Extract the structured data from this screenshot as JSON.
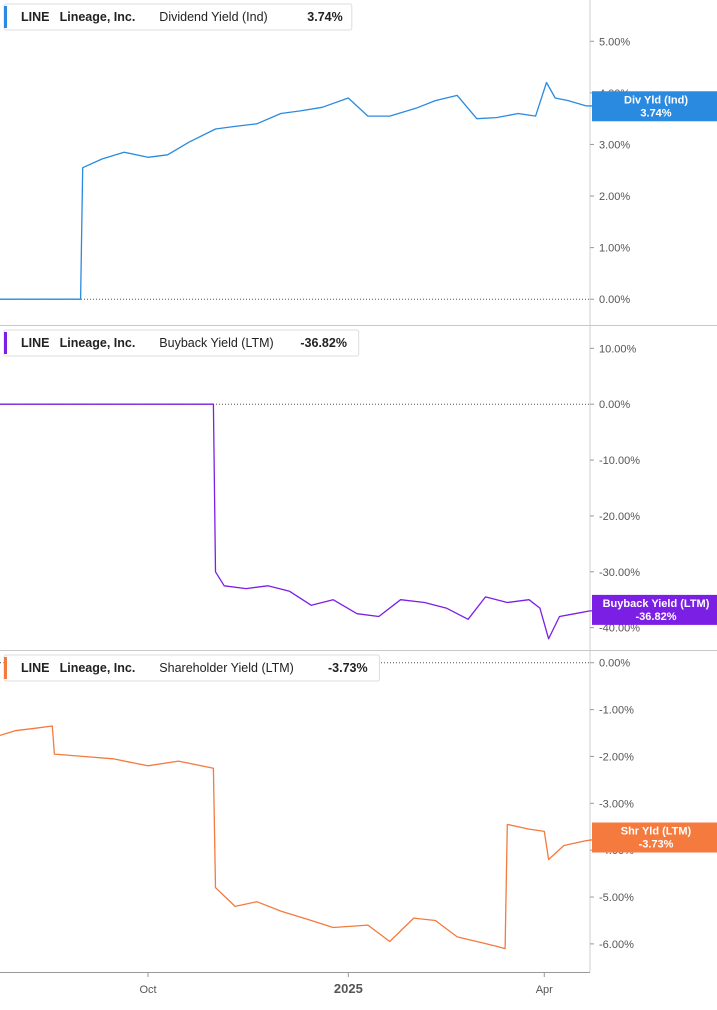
{
  "colors": {
    "dividend": "#2a8ae0",
    "buyback": "#7b1fe4",
    "shareholder": "#f47a3e",
    "grid": "#d8d8d8",
    "axis_text": "#555555",
    "label_text": "#222222"
  },
  "x_axis": {
    "ticks": [
      {
        "label": "Oct",
        "date": "2024-10-01",
        "bold": false
      },
      {
        "label": "2025",
        "date": "2025-01-01",
        "bold": true
      },
      {
        "label": "Apr",
        "date": "2025-04-01",
        "bold": false
      }
    ]
  },
  "chart_data": [
    {
      "type": "line",
      "legend": {
        "ticker": "LINE",
        "company": "Lineage, Inc.",
        "metric": "Dividend Yield (Ind)",
        "value": "3.74%"
      },
      "flag": {
        "line1": "Div Yld (Ind)",
        "line2": "3.74%",
        "value": 3.74
      },
      "color_key": "dividend",
      "ylim": [
        -0.5,
        5.8
      ],
      "y_ticks": [
        {
          "v": 0,
          "label": "0.00%"
        },
        {
          "v": 1,
          "label": "1.00%"
        },
        {
          "v": 2,
          "label": "2.00%"
        },
        {
          "v": 3,
          "label": "3.00%"
        },
        {
          "v": 4,
          "label": "4.00%"
        },
        {
          "v": 5,
          "label": "5.00%"
        }
      ],
      "reference_y": 0,
      "x": [
        "2024-07-25",
        "2024-08-31",
        "2024-09-01",
        "2024-09-10",
        "2024-09-20",
        "2024-10-01",
        "2024-10-10",
        "2024-10-20",
        "2024-11-01",
        "2024-11-10",
        "2024-11-20",
        "2024-12-01",
        "2024-12-10",
        "2024-12-20",
        "2025-01-01",
        "2025-01-10",
        "2025-01-20",
        "2025-02-01",
        "2025-02-10",
        "2025-02-20",
        "2025-03-01",
        "2025-03-10",
        "2025-03-20",
        "2025-03-28",
        "2025-04-02",
        "2025-04-06",
        "2025-04-12",
        "2025-04-20",
        "2025-04-30"
      ],
      "y": [
        0.0,
        0.0,
        2.55,
        2.72,
        2.85,
        2.75,
        2.8,
        3.05,
        3.3,
        3.35,
        3.4,
        3.6,
        3.65,
        3.72,
        3.9,
        3.55,
        3.55,
        3.7,
        3.85,
        3.95,
        3.5,
        3.52,
        3.6,
        3.55,
        4.2,
        3.9,
        3.85,
        3.75,
        3.74
      ]
    },
    {
      "type": "line",
      "legend": {
        "ticker": "LINE",
        "company": "Lineage, Inc.",
        "metric": "Buyback Yield (LTM)",
        "value": "-36.82%"
      },
      "flag": {
        "line1": "Buyback Yield (LTM)",
        "line2": "-36.82%",
        "value": -36.82
      },
      "color_key": "buyback",
      "ylim": [
        -44,
        14
      ],
      "y_ticks": [
        {
          "v": 10,
          "label": "10.00%"
        },
        {
          "v": 0,
          "label": "0.00%"
        },
        {
          "v": -10,
          "label": "-10.00%"
        },
        {
          "v": -20,
          "label": "-20.00%"
        },
        {
          "v": -30,
          "label": "-30.00%"
        },
        {
          "v": -40,
          "label": "-40.00%"
        }
      ],
      "reference_y": 0,
      "x": [
        "2024-07-25",
        "2024-10-31",
        "2024-11-01",
        "2024-11-05",
        "2024-11-15",
        "2024-11-25",
        "2024-12-05",
        "2024-12-15",
        "2024-12-25",
        "2025-01-05",
        "2025-01-15",
        "2025-01-25",
        "2025-02-05",
        "2025-02-15",
        "2025-02-25",
        "2025-03-05",
        "2025-03-15",
        "2025-03-25",
        "2025-03-30",
        "2025-04-03",
        "2025-04-08",
        "2025-04-15",
        "2025-04-22",
        "2025-04-30"
      ],
      "y": [
        0.0,
        0.0,
        -30.0,
        -32.5,
        -33.0,
        -32.5,
        -33.5,
        -36.0,
        -35.0,
        -37.5,
        -38.0,
        -35.0,
        -35.5,
        -36.5,
        -38.5,
        -34.5,
        -35.5,
        -35.0,
        -36.5,
        -42.0,
        -38.0,
        -37.5,
        -37.0,
        -36.82
      ]
    },
    {
      "type": "line",
      "legend": {
        "ticker": "LINE",
        "company": "Lineage, Inc.",
        "metric": "Shareholder Yield (LTM)",
        "value": "-3.73%"
      },
      "flag": {
        "line1": "Shr Yld (LTM)",
        "line2": "-3.73%",
        "value": -3.73
      },
      "color_key": "shareholder",
      "ylim": [
        -6.6,
        0.25
      ],
      "y_ticks": [
        {
          "v": 0,
          "label": "0.00%"
        },
        {
          "v": -1,
          "label": "-1.00%"
        },
        {
          "v": -2,
          "label": "-2.00%"
        },
        {
          "v": -3,
          "label": "-3.00%"
        },
        {
          "v": -4,
          "label": "-4.00%"
        },
        {
          "v": -5,
          "label": "-5.00%"
        },
        {
          "v": -6,
          "label": "-6.00%"
        }
      ],
      "reference_y": 0,
      "x": [
        "2024-07-25",
        "2024-08-01",
        "2024-08-10",
        "2024-08-18",
        "2024-08-19",
        "2024-09-01",
        "2024-09-15",
        "2024-10-01",
        "2024-10-15",
        "2024-10-31",
        "2024-11-01",
        "2024-11-10",
        "2024-11-20",
        "2024-12-01",
        "2024-12-15",
        "2024-12-25",
        "2025-01-10",
        "2025-01-20",
        "2025-01-31",
        "2025-02-10",
        "2025-02-20",
        "2025-03-01",
        "2025-03-10",
        "2025-03-14",
        "2025-03-15",
        "2025-03-25",
        "2025-04-01",
        "2025-04-03",
        "2025-04-10",
        "2025-04-20",
        "2025-04-30"
      ],
      "y": [
        -1.55,
        -1.45,
        -1.4,
        -1.35,
        -1.95,
        -2.0,
        -2.05,
        -2.2,
        -2.1,
        -2.25,
        -4.8,
        -5.2,
        -5.1,
        -5.3,
        -5.5,
        -5.65,
        -5.6,
        -5.95,
        -5.45,
        -5.5,
        -5.85,
        -5.95,
        -6.05,
        -6.1,
        -3.45,
        -3.55,
        -3.6,
        -4.2,
        -3.9,
        -3.8,
        -3.73
      ]
    }
  ]
}
